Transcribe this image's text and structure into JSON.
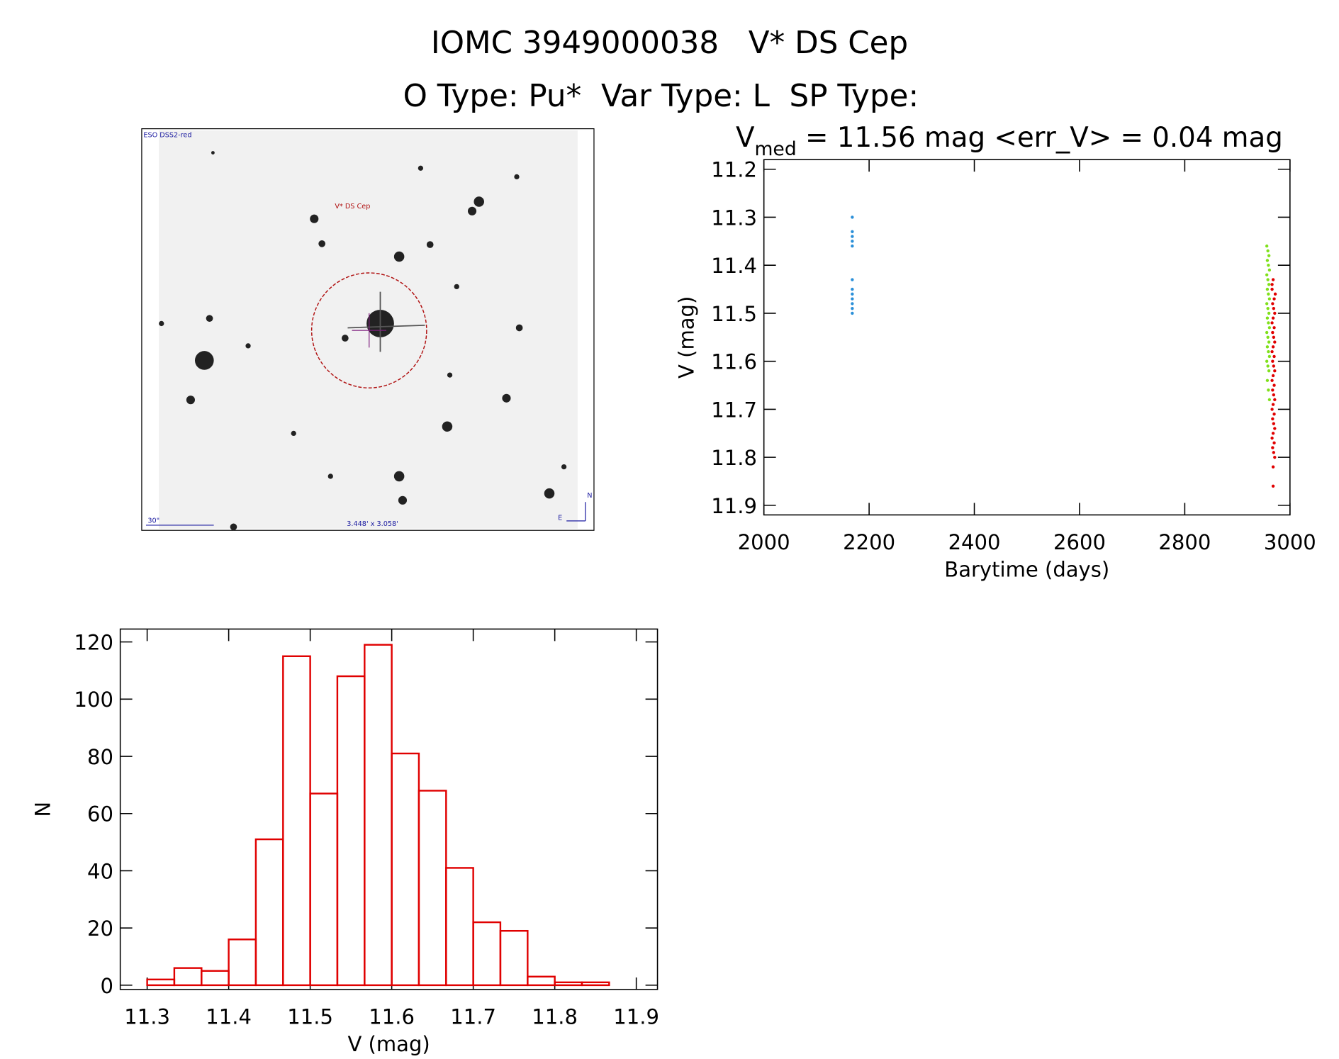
{
  "header": {
    "title": "IOMC 3949000038   V* DS Cep",
    "subtitle": "O Type: Pu*  Var Type: L  SP Type:"
  },
  "image": {
    "survey": "ESO DSS2-red",
    "target": "V* DS Cep",
    "scale": "30\"",
    "size": "3.448' x 3.058'",
    "north": "N",
    "east": "E"
  },
  "chart_data": [
    {
      "type": "scatter",
      "title_parts": [
        "V",
        "med",
        " = 11.56 mag <err_V> = 0.04 mag"
      ],
      "x_label": "Barytime (days)",
      "y_label": "V (mag)",
      "xlim": [
        2000,
        3000
      ],
      "xticks": [
        2000,
        2200,
        2400,
        2600,
        2800,
        3000
      ],
      "ylim": [
        11.18,
        11.92
      ],
      "yticks": [
        11.2,
        11.3,
        11.4,
        11.5,
        11.6,
        11.7,
        11.8,
        11.9
      ],
      "invert_y": true,
      "series": [
        {
          "color": "#2a8fd8",
          "x": [
            2168,
            2168,
            2168,
            2168,
            2168,
            2168,
            2168,
            2168,
            2168,
            2168,
            2168,
            2168
          ],
          "values": [
            11.3,
            11.33,
            11.34,
            11.35,
            11.36,
            11.43,
            11.45,
            11.46,
            11.47,
            11.48,
            11.49,
            11.5
          ]
        },
        {
          "color": "#7fe01a",
          "x": [
            2956,
            2958,
            2960,
            2957,
            2959,
            2961,
            2956,
            2958,
            2960,
            2957,
            2959,
            2961,
            2956,
            2958,
            2960,
            2957,
            2959,
            2961,
            2956,
            2958,
            2960,
            2957,
            2959,
            2961,
            2956,
            2958,
            2960,
            2957,
            2959,
            2961
          ],
          "values": [
            11.36,
            11.37,
            11.38,
            11.39,
            11.4,
            11.41,
            11.42,
            11.43,
            11.44,
            11.45,
            11.46,
            11.47,
            11.48,
            11.49,
            11.5,
            11.51,
            11.52,
            11.53,
            11.54,
            11.55,
            11.56,
            11.57,
            11.58,
            11.59,
            11.6,
            11.61,
            11.62,
            11.64,
            11.66,
            11.68
          ]
        },
        {
          "color": "#e00000",
          "x": [
            2968,
            2966,
            2970,
            2967,
            2969,
            2971,
            2968,
            2966,
            2970,
            2967,
            2969,
            2971,
            2968,
            2966,
            2970,
            2967,
            2969,
            2971,
            2968,
            2966,
            2970,
            2967,
            2969,
            2971,
            2968,
            2966,
            2970,
            2967,
            2969,
            2971,
            2968,
            2966,
            2970,
            2967,
            2969,
            2971,
            2968,
            2968,
            2972,
            2966
          ],
          "values": [
            11.43,
            11.45,
            11.47,
            11.48,
            11.49,
            11.5,
            11.51,
            11.52,
            11.53,
            11.54,
            11.55,
            11.56,
            11.57,
            11.58,
            11.59,
            11.6,
            11.61,
            11.62,
            11.63,
            11.64,
            11.65,
            11.66,
            11.67,
            11.68,
            11.69,
            11.7,
            11.71,
            11.72,
            11.73,
            11.74,
            11.75,
            11.76,
            11.77,
            11.78,
            11.79,
            11.8,
            11.82,
            11.86,
            11.46,
            11.44
          ]
        }
      ]
    },
    {
      "type": "histogram",
      "x_label": "V (mag)",
      "y_label": "N",
      "color": "#e00000",
      "bins": [
        11.3,
        11.3333,
        11.3667,
        11.4,
        11.4333,
        11.4667,
        11.5,
        11.5333,
        11.5667,
        11.6,
        11.6333,
        11.6667,
        11.7,
        11.7333,
        11.7667,
        11.8,
        11.8333,
        11.8667
      ],
      "counts": [
        2,
        6,
        5,
        16,
        51,
        115,
        67,
        108,
        119,
        81,
        68,
        41,
        22,
        19,
        3,
        1,
        1
      ],
      "xlim": [
        11.267,
        11.926
      ],
      "xticks": [
        11.3,
        11.4,
        11.5,
        11.6,
        11.7,
        11.8,
        11.9
      ],
      "ylim": [
        -1.5,
        124.5
      ],
      "yticks": [
        0,
        20,
        40,
        60,
        80,
        100,
        120
      ]
    }
  ]
}
